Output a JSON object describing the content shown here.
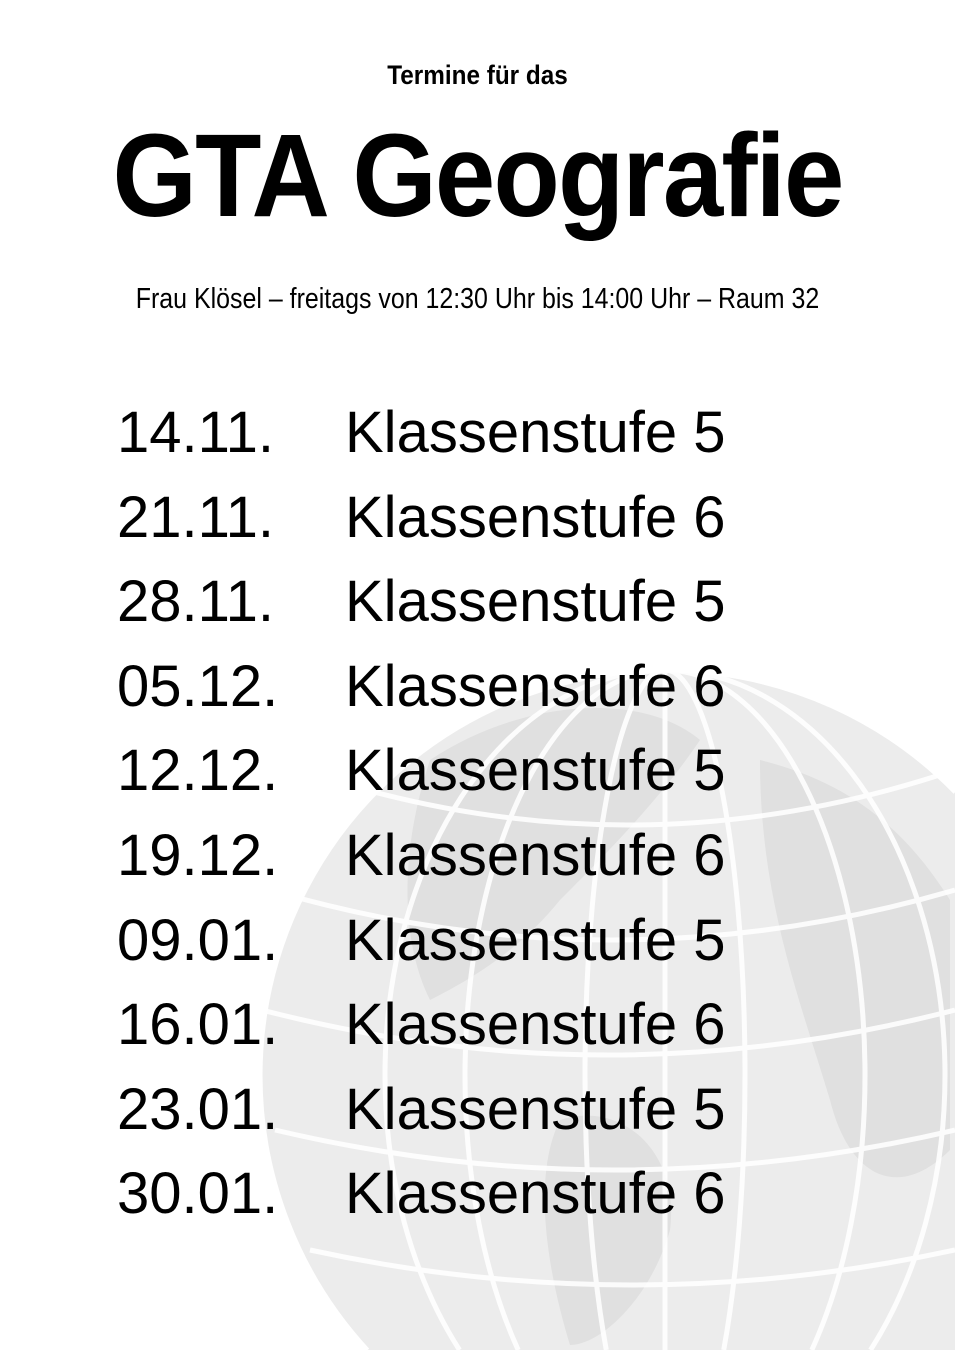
{
  "header": {
    "kicker": "Termine für das",
    "title": "GTA Geografie",
    "subtitle": "Frau Klösel – freitags von 12:30 Uhr bis 14:00 Uhr – Raum 32"
  },
  "schedule": [
    {
      "date": "14.11.",
      "label": "Klassenstufe 5"
    },
    {
      "date": "21.11.",
      "label": "Klassenstufe 6"
    },
    {
      "date": "28.11.",
      "label": "Klassenstufe 5"
    },
    {
      "date": "05.12.",
      "label": "Klassenstufe 6"
    },
    {
      "date": "12.12.",
      "label": "Klassenstufe 5"
    },
    {
      "date": "19.12.",
      "label": "Klassenstufe 6"
    },
    {
      "date": "09.01.",
      "label": "Klassenstufe 5"
    },
    {
      "date": "16.01.",
      "label": "Klassenstufe 6"
    },
    {
      "date": "23.01.",
      "label": "Klassenstufe 5"
    },
    {
      "date": "30.01.",
      "label": "Klassenstufe 6"
    }
  ],
  "background": {
    "icon": "globe-icon",
    "color": "#e6e6e6"
  }
}
